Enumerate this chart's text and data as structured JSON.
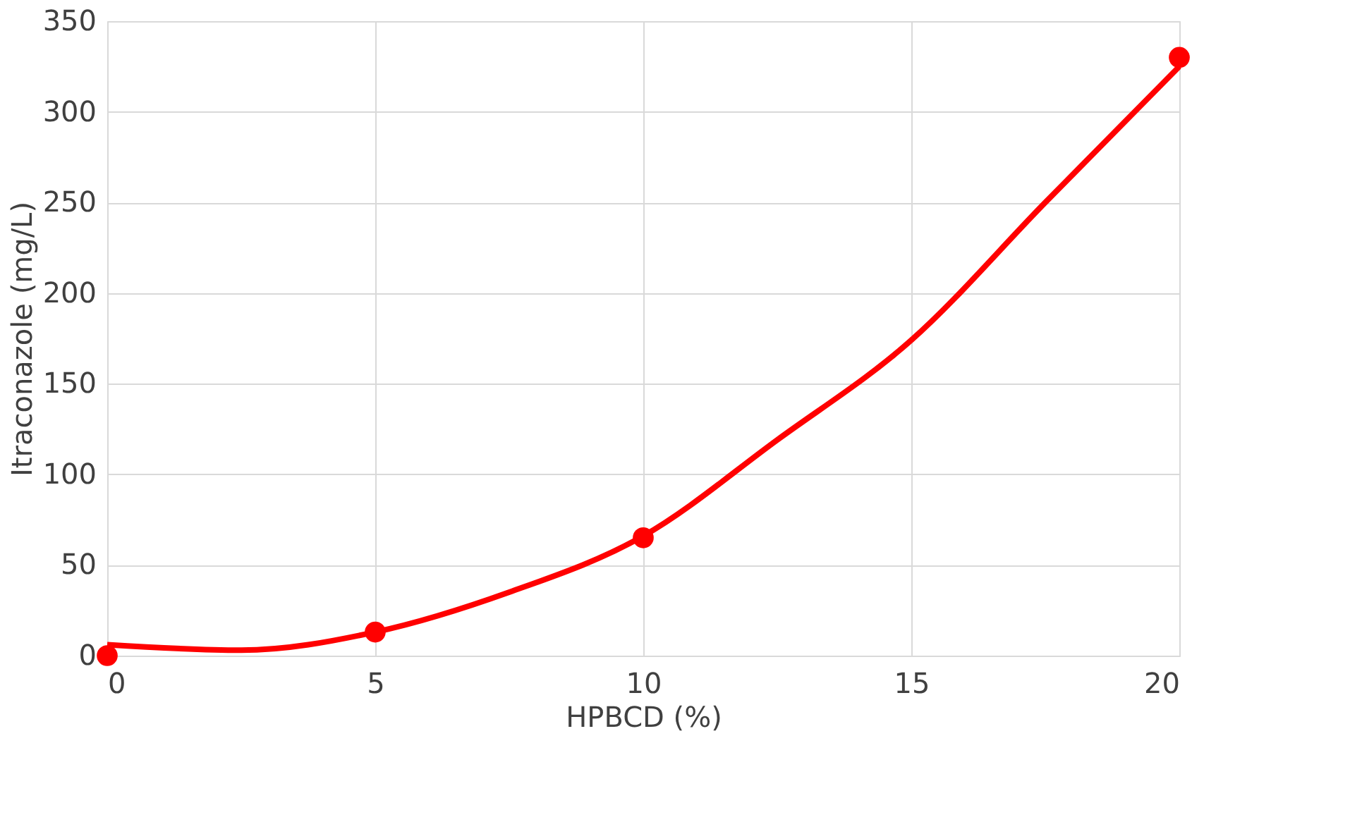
{
  "chart_data": {
    "type": "scatter",
    "xlabel": "HPBCD (%)",
    "ylabel": "Itraconazole (mg/L)",
    "series": [
      {
        "color": "#ff0000",
        "x": [
          0,
          5,
          10,
          20
        ],
        "values": [
          0,
          13,
          65,
          330
        ],
        "marker": "circle"
      },
      {
        "type": "line",
        "color": "#ff0000",
        "x": [
          0,
          2.5,
          5,
          7.5,
          10,
          12.5,
          15,
          17.5,
          20
        ],
        "values": [
          6,
          3,
          13,
          35,
          66,
          119,
          174,
          250,
          325
        ],
        "line_style": "solid"
      }
    ],
    "xlim": [
      0,
      20
    ],
    "xticks": [
      0,
      5,
      10,
      15,
      20
    ],
    "ylim": [
      0,
      350
    ],
    "yticks": [
      0,
      50,
      100,
      150,
      200,
      250,
      300,
      350
    ],
    "grid": true
  }
}
